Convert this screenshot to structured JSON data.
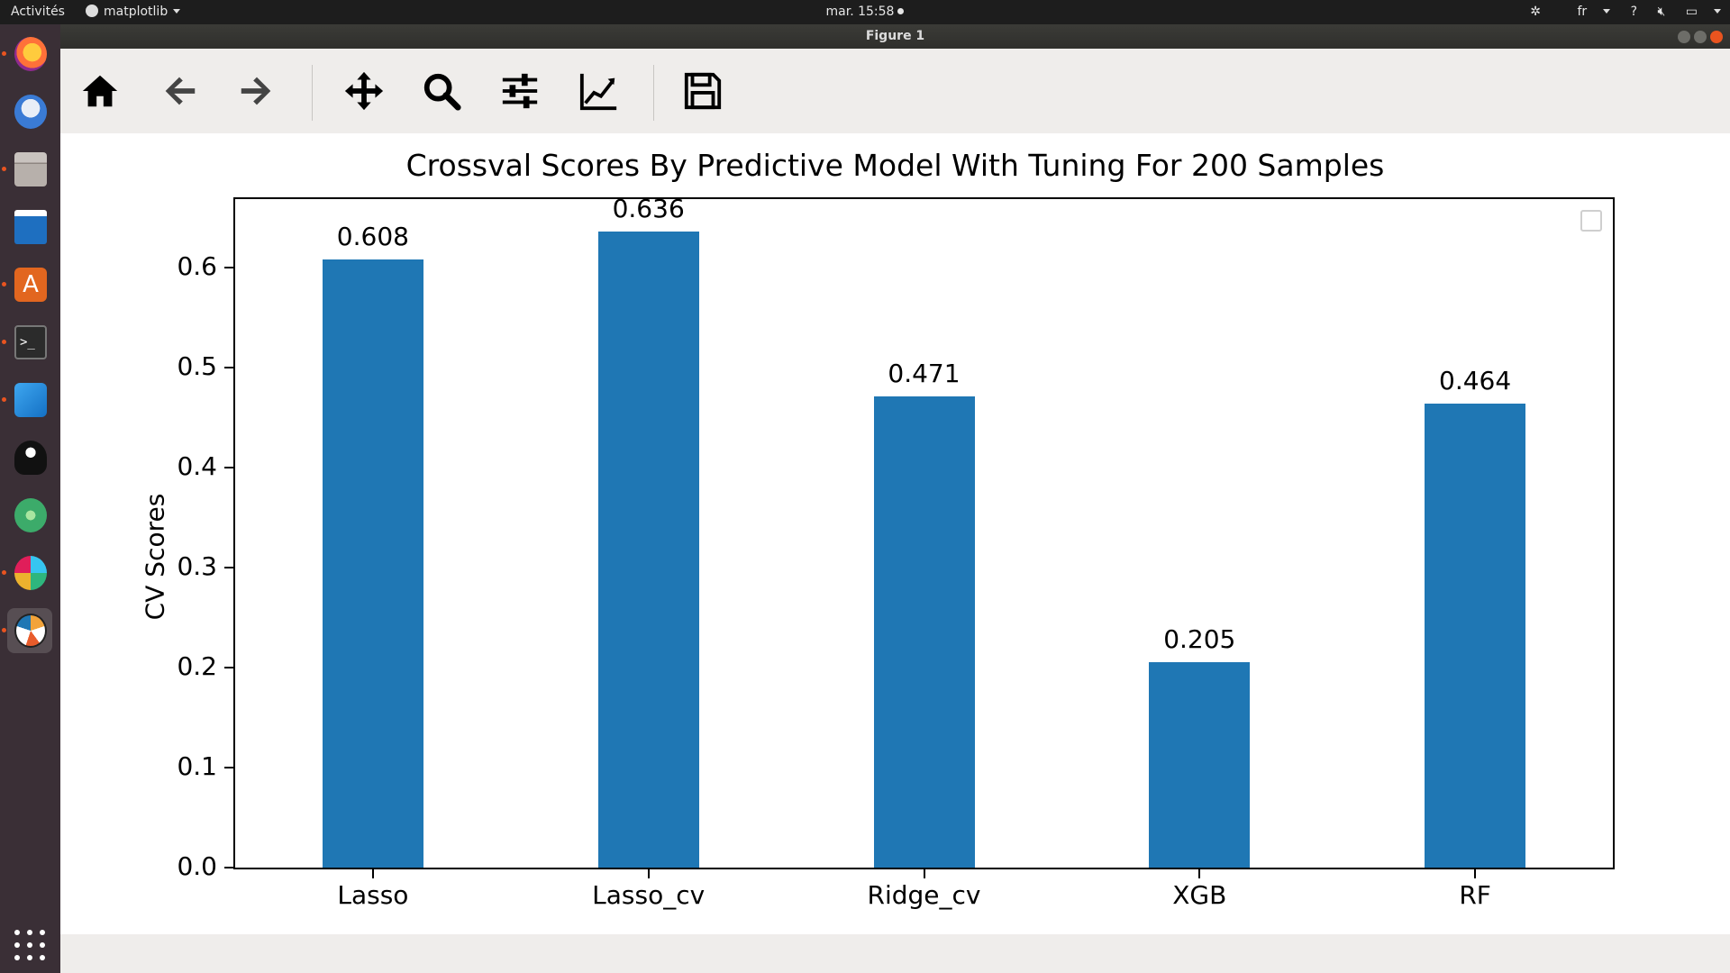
{
  "topbar": {
    "activities": "Activités",
    "app_name": "matplotlib",
    "clock": "mar. 15:58",
    "language": "fr",
    "help": "?"
  },
  "dock": {
    "apps": [
      "firefox-icon",
      "thunderbird-icon",
      "files-icon",
      "writer-icon",
      "software-icon",
      "terminal-icon",
      "vscode-icon",
      "inkscape-icon",
      "atom-icon",
      "slack-icon",
      "matplotlib-icon"
    ]
  },
  "window": {
    "title": "Figure 1"
  },
  "toolbar": {
    "tools": [
      "home-icon",
      "back-icon",
      "forward-icon",
      "pan-icon",
      "zoom-icon",
      "subplots-icon",
      "axes-edit-icon",
      "save-icon"
    ]
  },
  "colors": {
    "bar": "#1f77b4",
    "dock_bg": "#3a2f36",
    "topbar_bg": "#1d1d1d",
    "window_bg": "#efedeb",
    "close_btn": "#e9541f"
  },
  "chart_data": {
    "type": "bar",
    "title": "Crossval Scores By Predictive Model With Tuning For 200 Samples",
    "xlabel": "",
    "ylabel": "CV Scores",
    "categories": [
      "Lasso",
      "Lasso_cv",
      "Ridge_cv",
      "XGB",
      "RF"
    ],
    "values": [
      0.608,
      0.636,
      0.471,
      0.205,
      0.464
    ],
    "value_labels": [
      "0.608",
      "0.636",
      "0.471",
      "0.205",
      "0.464"
    ],
    "yticks": [
      "0.0",
      "0.1",
      "0.2",
      "0.3",
      "0.4",
      "0.5",
      "0.6"
    ],
    "ylim": [
      0,
      0.668
    ],
    "grid": false,
    "legend": "top-right, empty"
  }
}
